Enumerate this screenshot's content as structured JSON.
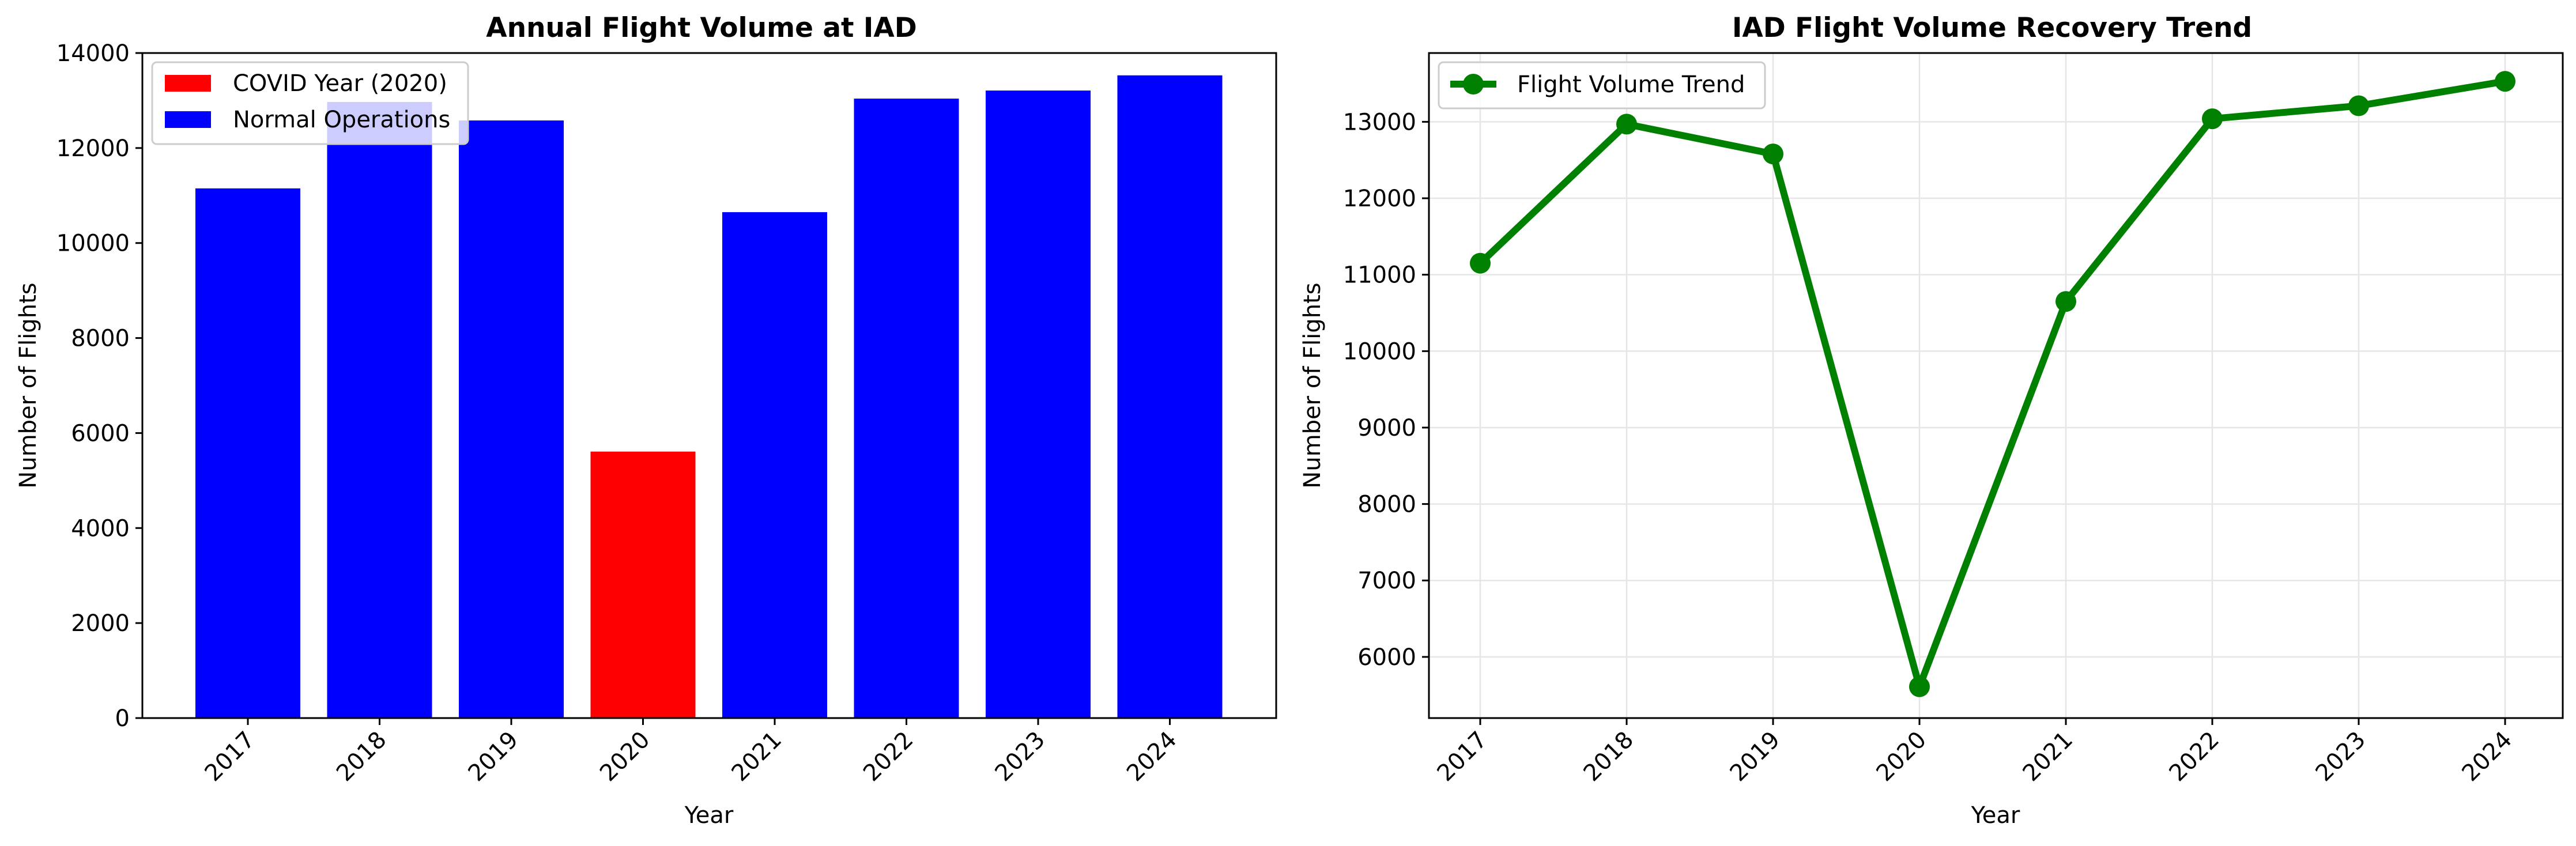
{
  "chart_data": [
    {
      "type": "bar",
      "title": "Annual Flight Volume at IAD",
      "xlabel": "Year",
      "ylabel": "Number of Flights",
      "categories": [
        "2017",
        "2018",
        "2019",
        "2020",
        "2021",
        "2022",
        "2023",
        "2024"
      ],
      "values": [
        11150,
        12970,
        12580,
        5610,
        10650,
        13040,
        13210,
        13530
      ],
      "bar_colors": [
        "#0000ff",
        "#0000ff",
        "#0000ff",
        "#ff0000",
        "#0000ff",
        "#0000ff",
        "#0000ff",
        "#0000ff"
      ],
      "ylim": [
        0,
        14000
      ],
      "yticks": [
        "0",
        "2000",
        "4000",
        "6000",
        "8000",
        "10000",
        "12000",
        "14000"
      ],
      "grid": false,
      "legend": {
        "placement": "top-left",
        "entries": [
          {
            "label": "COVID Year (2020)",
            "color": "#ff0000"
          },
          {
            "label": "Normal Operations",
            "color": "#0000ff"
          }
        ]
      }
    },
    {
      "type": "line",
      "title": "IAD Flight Volume Recovery Trend",
      "xlabel": "Year",
      "ylabel": "Number of Flights",
      "x": [
        "2017",
        "2018",
        "2019",
        "2020",
        "2021",
        "2022",
        "2023",
        "2024"
      ],
      "series": [
        {
          "name": "Flight Volume Trend",
          "values": [
            11150,
            12970,
            12580,
            5610,
            10650,
            13040,
            13210,
            13530
          ],
          "color": "#008000",
          "marker": "circle"
        }
      ],
      "ylim": [
        5200,
        13900
      ],
      "yticks": [
        "6000",
        "7000",
        "8000",
        "9000",
        "10000",
        "11000",
        "12000",
        "13000"
      ],
      "grid": true,
      "legend": {
        "placement": "top-left"
      }
    }
  ]
}
